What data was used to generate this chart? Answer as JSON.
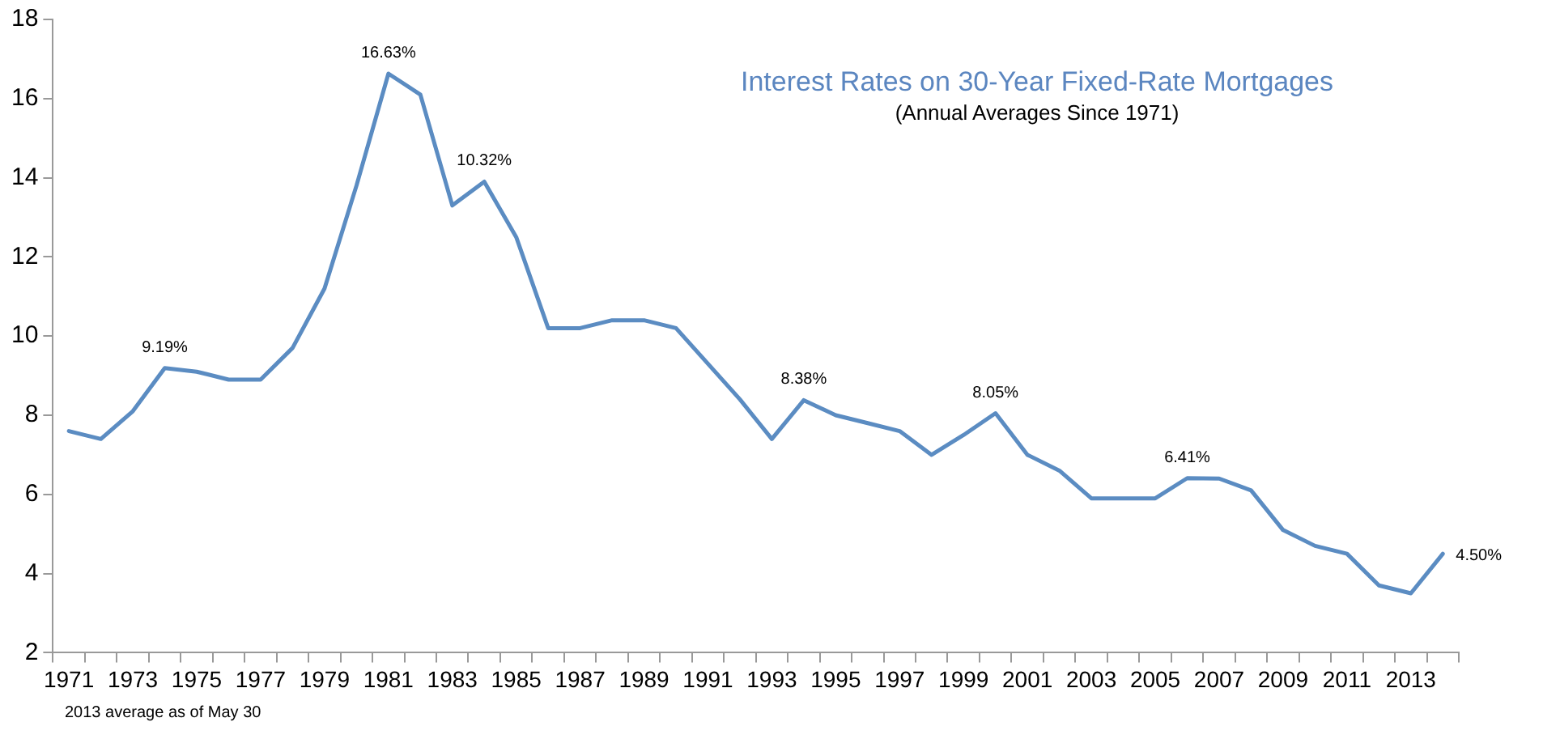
{
  "chart_data": {
    "type": "line",
    "title": "Interest Rates on 30-Year Fixed-Rate Mortgages",
    "subtitle": "(Annual Averages Since 1971)",
    "categories": [
      "1971",
      null,
      "1973",
      null,
      "1975",
      null,
      "1977",
      null,
      "1979",
      null,
      "1981",
      null,
      "1983",
      null,
      "1985",
      null,
      "1987",
      null,
      "1989",
      null,
      "1991",
      null,
      "1993",
      null,
      "1995",
      null,
      "1997",
      null,
      "1999",
      null,
      "2001",
      null,
      "2003",
      null,
      "2005",
      null,
      "2007",
      null,
      "2009",
      null,
      "2011",
      null,
      "2013",
      null
    ],
    "series": [
      {
        "color": "#5b8cc2",
        "values": [
          7.6,
          7.4,
          8.1,
          9.19,
          9.1,
          8.9,
          8.9,
          9.7,
          11.2,
          13.8,
          16.63,
          16.1,
          13.3,
          13.9,
          12.5,
          10.2,
          10.2,
          10.4,
          10.4,
          10.2,
          9.3,
          8.4,
          7.4,
          8.38,
          8.0,
          7.8,
          7.6,
          7.0,
          7.5,
          8.05,
          7.0,
          6.6,
          5.9,
          5.9,
          5.9,
          6.41,
          6.4,
          6.1,
          5.1,
          4.7,
          4.5,
          3.7,
          3.5,
          4.5
        ],
        "value_labels": [
          null,
          null,
          null,
          "9.19%",
          null,
          null,
          null,
          null,
          null,
          null,
          "16.63%",
          null,
          null,
          null,
          null,
          null,
          null,
          null,
          null,
          null,
          null,
          null,
          null,
          "8.38%",
          null,
          null,
          null,
          null,
          null,
          "8.05%",
          null,
          null,
          null,
          null,
          null,
          "6.41%",
          null,
          null,
          null,
          null,
          null,
          null,
          null,
          "4.50%"
        ]
      }
    ],
    "ylim": [
      2,
      18
    ],
    "yticks": [
      2,
      4,
      6,
      8,
      10,
      12,
      14,
      16,
      18
    ],
    "grid": false,
    "legend": false,
    "marker": "none",
    "line_style": "solid",
    "annotations": [
      {
        "text": "10.32%",
        "y": 13.9
      },
      "2013 average as of May 30"
    ]
  }
}
